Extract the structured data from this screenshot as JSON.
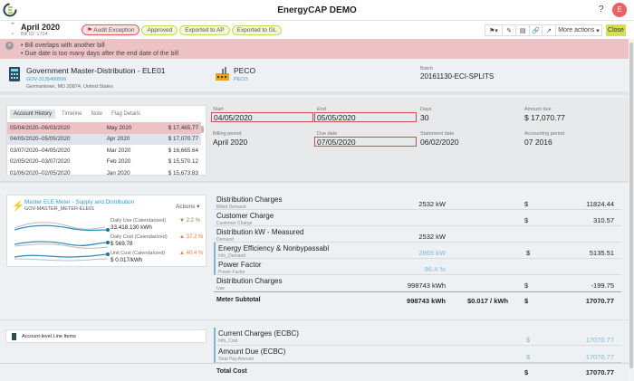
{
  "app": {
    "title": "EnergyCAP DEMO",
    "help": "?",
    "avatar": "E",
    "brand_color": "#8dc63f"
  },
  "bill": {
    "period": "April 2020",
    "bill_id": "Bill ID: 1704",
    "badges": [
      "Audit Exception",
      "Approved",
      "Exported to AP",
      "Exported to GL"
    ]
  },
  "toolbar": {
    "more_actions": "More actions",
    "close": "Close",
    "icons": [
      "flag-icon",
      "pencil-icon",
      "document-icon",
      "link-icon",
      "external-link-icon"
    ]
  },
  "alerts": [
    "Bill overlaps with another bill",
    "Due date is too many days after the end date of the bill"
  ],
  "account": {
    "name": "Government Master-Distribution - ELE01",
    "code": "GOV-3135400506",
    "address": "Germantown, MD 20874, United States",
    "vendor": "PECO",
    "vendor_code": "PECO",
    "batch_label": "Batch",
    "batch": "20161130-ECI-SPLITS"
  },
  "history": {
    "tabs": [
      "Account History",
      "Timeline",
      "Note",
      "Flag Details"
    ],
    "rows": [
      {
        "range": "05/04/2020–06/03/2020",
        "period": "May 2020",
        "amount": "$ 17,465.77"
      },
      {
        "range": "04/05/2020–05/05/2020",
        "period": "Apr 2020",
        "amount": "$ 17,070.77"
      },
      {
        "range": "03/07/2020–04/05/2020",
        "period": "Mar 2020",
        "amount": "$ 16,665.64"
      },
      {
        "range": "02/05/2020–03/07/2020",
        "period": "Feb 2020",
        "amount": "$ 15,570.12"
      },
      {
        "range": "01/06/2020–02/05/2020",
        "period": "Jan 2020",
        "amount": "$ 15,673.83"
      }
    ]
  },
  "fields": {
    "start_label": "Start",
    "start": "04/05/2020",
    "end_label": "End",
    "end": "05/05/2020",
    "days_label": "Days",
    "days": "30",
    "amount_label": "Amount due",
    "amount": "$ 17,070.77",
    "billing_label": "Billing period",
    "billing": "April 2020",
    "due_label": "Due date",
    "due": "07/05/2020",
    "statement_label": "Statement date",
    "statement": "06/02/2020",
    "acct_period_label": "Accounting period",
    "acct_period": "07 2016"
  },
  "meter": {
    "name": "Master ELE Meter - Supply and Distribution",
    "code": "GOV-MASTER_METER-ELE01",
    "actions": "Actions",
    "stats": [
      {
        "label": "Daily Use (Calendarized)",
        "value": "33,418.130 kWh",
        "change": "2.2 %",
        "dir": "down",
        "color": "#6a9a1f"
      },
      {
        "label": "Daily Cost (Calendarized)",
        "value": "$ 569.78",
        "change": "37.2 %",
        "dir": "up",
        "color": "#f07a2f"
      },
      {
        "label": "Unit Cost (Calendarized)",
        "value": "$ 0.017/kWh",
        "change": "40.4 %",
        "dir": "up",
        "color": "#f07a2f"
      }
    ]
  },
  "line_items": [
    {
      "name": "Distribution Charges",
      "sub": "Billed Demand",
      "qty": "2532 kW",
      "cur": "$",
      "amt": "11824.44"
    },
    {
      "name": "Customer Charge",
      "sub": "Customer Charge",
      "qty": "",
      "cur": "$",
      "amt": "310.57"
    },
    {
      "name": "Distribution kW - Measured",
      "sub": "Demand",
      "qty": "2532 kW",
      "cur": "",
      "amt": ""
    },
    {
      "name": "Energy Efficiency & Nonbypassabl",
      "sub": "Info_Demand",
      "qty": "2869 kW",
      "cur": "$",
      "amt": "5135.51"
    },
    {
      "name": "Power Factor",
      "sub": "Power Factor",
      "qty": "96.4 %",
      "cur": "",
      "amt": ""
    },
    {
      "name": "Distribution Charges",
      "sub": "Use",
      "qty": "998743 kWh",
      "cur": "$",
      "amt": "-199.75"
    }
  ],
  "subtotal": {
    "label": "Meter Subtotal",
    "qty": "998743 kWh",
    "rate": "$0.017 / kWh",
    "cur": "$",
    "amt": "17070.77"
  },
  "account_items": {
    "label": "Account-level Line Items",
    "rows": [
      {
        "name": "Current Charges (ECBC)",
        "sub": "Info_Cost",
        "cur": "$",
        "amt": "17070.77"
      },
      {
        "name": "Amount Due (ECBC)",
        "sub": "Total Pay Amount",
        "cur": "$",
        "amt": "17070.77"
      }
    ]
  },
  "total": {
    "label": "Total Cost",
    "cur": "$",
    "amt": "17070.77"
  }
}
